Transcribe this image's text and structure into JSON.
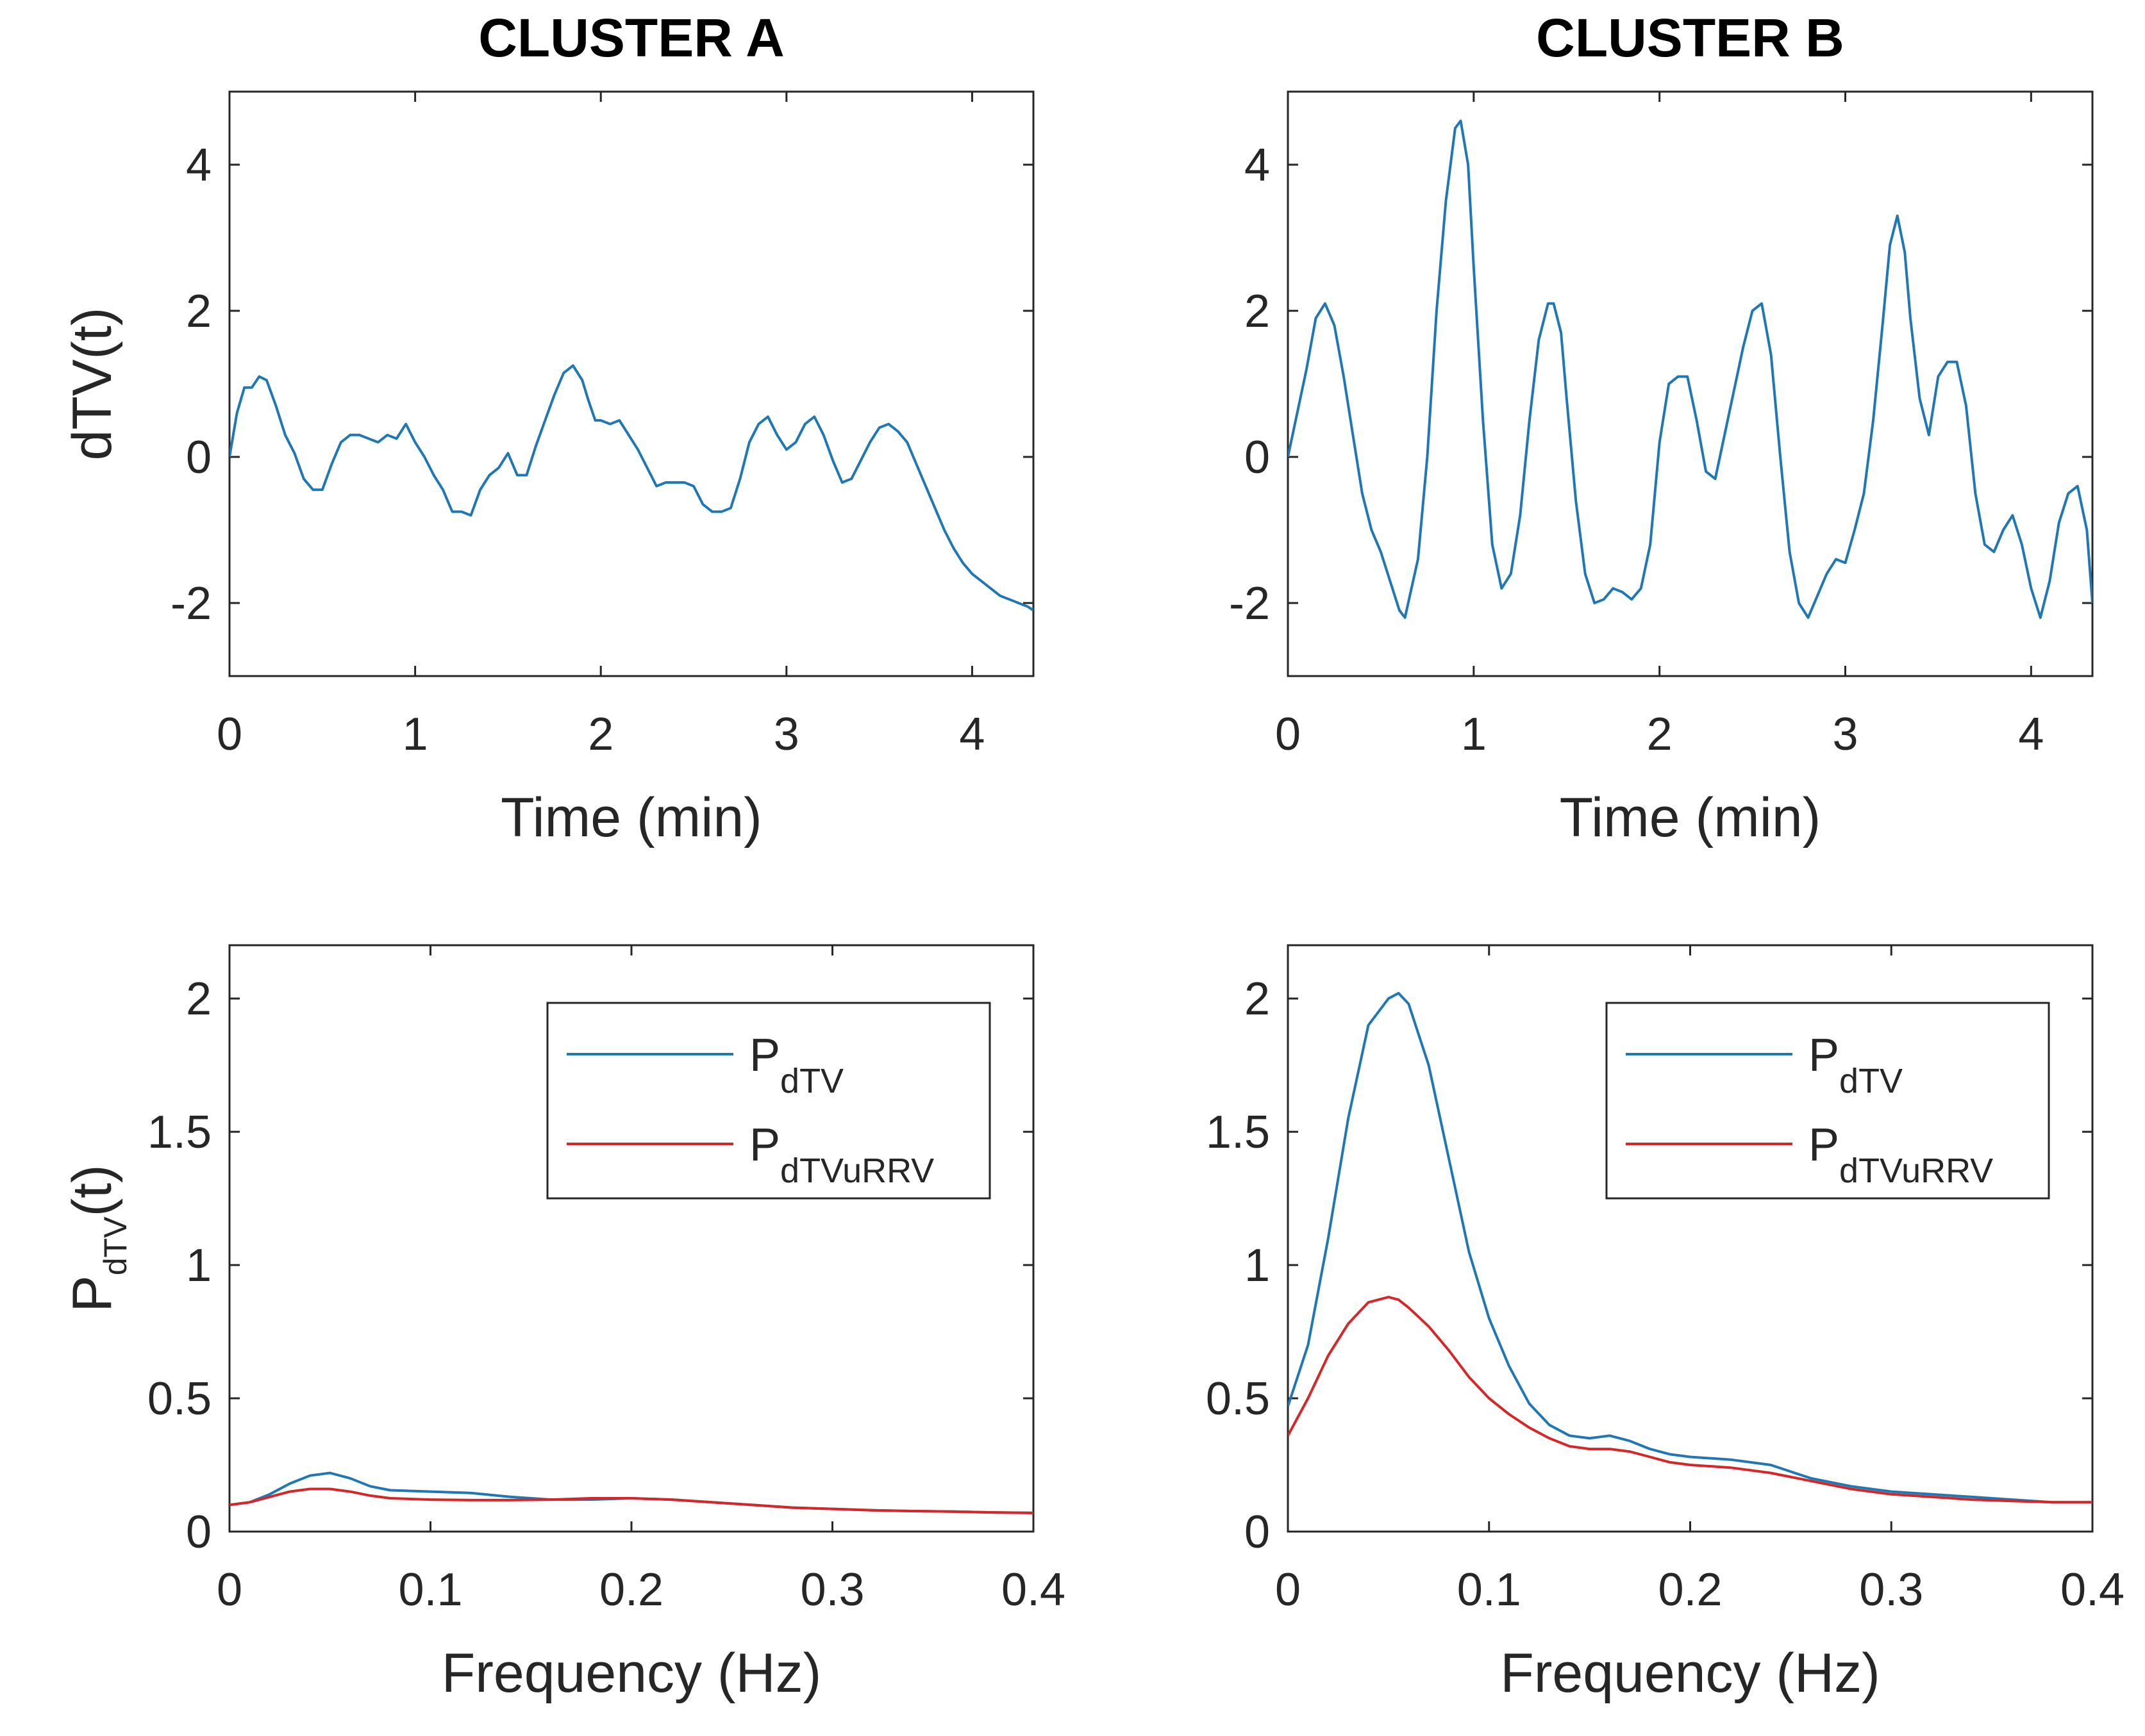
{
  "colors": {
    "blue": "#1f77b4",
    "red": "#d62728",
    "axis": "#262626"
  },
  "chart_data": [
    {
      "type": "line",
      "title": "CLUSTER A",
      "xlabel": "Time (min)",
      "ylabel": "dTV(t)",
      "xlim": [
        0,
        4.33
      ],
      "ylim": [
        -3,
        5
      ],
      "xticks": [
        0,
        1,
        2,
        3,
        4
      ],
      "xtick_labels": [
        "0",
        "1",
        "2",
        "3",
        "4"
      ],
      "yticks": [
        -2,
        0,
        2,
        4
      ],
      "ytick_labels": [
        "-2",
        "0",
        "2",
        "4"
      ],
      "grid": false,
      "legend": null,
      "series": [
        {
          "color": "#1f77b4",
          "x": [
            0,
            0.04,
            0.08,
            0.12,
            0.16,
            0.2,
            0.25,
            0.3,
            0.35,
            0.4,
            0.45,
            0.5,
            0.55,
            0.6,
            0.65,
            0.7,
            0.75,
            0.8,
            0.85,
            0.9,
            0.95,
            1.0,
            1.05,
            1.1,
            1.15,
            1.2,
            1.25,
            1.3,
            1.35,
            1.4,
            1.45,
            1.5,
            1.55,
            1.6,
            1.65,
            1.7,
            1.75,
            1.8,
            1.85,
            1.9,
            1.93,
            1.97,
            2.0,
            2.05,
            2.1,
            2.15,
            2.2,
            2.25,
            2.3,
            2.35,
            2.4,
            2.45,
            2.5,
            2.55,
            2.6,
            2.65,
            2.7,
            2.75,
            2.8,
            2.85,
            2.9,
            2.95,
            3.0,
            3.05,
            3.1,
            3.15,
            3.2,
            3.25,
            3.3,
            3.35,
            3.4,
            3.45,
            3.5,
            3.55,
            3.6,
            3.65,
            3.7,
            3.75,
            3.8,
            3.85,
            3.9,
            3.95,
            4.0,
            4.05,
            4.1,
            4.15,
            4.2,
            4.25,
            4.3,
            4.33
          ],
          "y": [
            0.0,
            0.6,
            0.95,
            0.95,
            1.1,
            1.05,
            0.7,
            0.3,
            0.05,
            -0.3,
            -0.45,
            -0.45,
            -0.1,
            0.2,
            0.3,
            0.3,
            0.25,
            0.2,
            0.3,
            0.25,
            0.45,
            0.2,
            0.0,
            -0.25,
            -0.45,
            -0.75,
            -0.75,
            -0.8,
            -0.45,
            -0.25,
            -0.15,
            0.05,
            -0.25,
            -0.25,
            0.15,
            0.5,
            0.85,
            1.15,
            1.25,
            1.05,
            0.8,
            0.5,
            0.5,
            0.45,
            0.5,
            0.3,
            0.1,
            -0.15,
            -0.4,
            -0.35,
            -0.35,
            -0.35,
            -0.4,
            -0.65,
            -0.75,
            -0.75,
            -0.7,
            -0.3,
            0.2,
            0.45,
            0.55,
            0.3,
            0.1,
            0.2,
            0.45,
            0.55,
            0.3,
            -0.05,
            -0.35,
            -0.3,
            -0.05,
            0.2,
            0.4,
            0.45,
            0.35,
            0.2,
            -0.1,
            -0.4,
            -0.7,
            -1.0,
            -1.25,
            -1.45,
            -1.6,
            -1.7,
            -1.8,
            -1.9,
            -1.95,
            -2.0,
            -2.05,
            -2.1
          ]
        }
      ]
    },
    {
      "type": "line",
      "title": "CLUSTER B",
      "xlabel": "Time (min)",
      "ylabel": "",
      "xlim": [
        0,
        4.33
      ],
      "ylim": [
        -3,
        5
      ],
      "xticks": [
        0,
        1,
        2,
        3,
        4
      ],
      "xtick_labels": [
        "0",
        "1",
        "2",
        "3",
        "4"
      ],
      "yticks": [
        -2,
        0,
        2,
        4
      ],
      "ytick_labels": [
        "-2",
        "0",
        "2",
        "4"
      ],
      "grid": false,
      "legend": null,
      "series": [
        {
          "color": "#1f77b4",
          "x": [
            0,
            0.05,
            0.1,
            0.15,
            0.2,
            0.25,
            0.3,
            0.35,
            0.4,
            0.45,
            0.5,
            0.55,
            0.6,
            0.63,
            0.7,
            0.75,
            0.8,
            0.85,
            0.9,
            0.93,
            0.97,
            1.0,
            1.05,
            1.1,
            1.15,
            1.2,
            1.25,
            1.3,
            1.35,
            1.4,
            1.43,
            1.47,
            1.5,
            1.55,
            1.6,
            1.65,
            1.7,
            1.75,
            1.8,
            1.85,
            1.9,
            1.95,
            2.0,
            2.05,
            2.1,
            2.15,
            2.2,
            2.25,
            2.3,
            2.35,
            2.4,
            2.45,
            2.5,
            2.55,
            2.6,
            2.65,
            2.7,
            2.75,
            2.8,
            2.85,
            2.9,
            2.95,
            3.0,
            3.05,
            3.1,
            3.15,
            3.2,
            3.24,
            3.28,
            3.32,
            3.35,
            3.4,
            3.45,
            3.5,
            3.55,
            3.6,
            3.65,
            3.7,
            3.75,
            3.8,
            3.85,
            3.9,
            3.95,
            4.0,
            4.05,
            4.1,
            4.15,
            4.2,
            4.25,
            4.3,
            4.33
          ],
          "y": [
            0.0,
            0.6,
            1.2,
            1.9,
            2.1,
            1.8,
            1.1,
            0.3,
            -0.5,
            -1.0,
            -1.3,
            -1.7,
            -2.1,
            -2.2,
            -1.4,
            0.0,
            2.0,
            3.5,
            4.5,
            4.6,
            4.0,
            2.6,
            0.5,
            -1.2,
            -1.8,
            -1.6,
            -0.8,
            0.5,
            1.6,
            2.1,
            2.1,
            1.7,
            0.8,
            -0.6,
            -1.6,
            -2.0,
            -1.95,
            -1.8,
            -1.85,
            -1.95,
            -1.8,
            -1.2,
            0.2,
            1.0,
            1.1,
            1.1,
            0.5,
            -0.2,
            -0.3,
            0.3,
            0.9,
            1.5,
            2.0,
            2.1,
            1.4,
            0.0,
            -1.3,
            -2.0,
            -2.2,
            -1.9,
            -1.6,
            -1.4,
            -1.45,
            -1.0,
            -0.5,
            0.5,
            1.8,
            2.9,
            3.3,
            2.8,
            1.9,
            0.8,
            0.3,
            1.1,
            1.3,
            1.3,
            0.7,
            -0.5,
            -1.2,
            -1.3,
            -1.0,
            -0.8,
            -1.2,
            -1.8,
            -2.2,
            -1.7,
            -0.9,
            -0.5,
            -0.4,
            -1.0,
            -2.0
          ]
        }
      ]
    },
    {
      "type": "line",
      "title": "",
      "xlabel": "Frequency (Hz)",
      "ylabel": "P",
      "ylabel_subscript": "dTV",
      "ylabel_suffix": "(t)",
      "xlim": [
        0,
        0.4
      ],
      "ylim": [
        0,
        2.2
      ],
      "xticks": [
        0,
        0.1,
        0.2,
        0.3,
        0.4
      ],
      "xtick_labels": [
        "0",
        "0.1",
        "0.2",
        "0.3",
        "0.4"
      ],
      "yticks": [
        0,
        0.5,
        1,
        1.5,
        2
      ],
      "ytick_labels": [
        "0",
        "0.5",
        "1",
        "1.5",
        "2"
      ],
      "grid": false,
      "legend": "top-right",
      "series": [
        {
          "name": "P",
          "name_subscript": "dTV",
          "color": "#1f77b4",
          "x": [
            0,
            0.01,
            0.02,
            0.03,
            0.04,
            0.05,
            0.06,
            0.07,
            0.08,
            0.1,
            0.12,
            0.14,
            0.16,
            0.18,
            0.2,
            0.22,
            0.24,
            0.26,
            0.28,
            0.3,
            0.32,
            0.34,
            0.36,
            0.38,
            0.4
          ],
          "y": [
            0.1,
            0.11,
            0.14,
            0.18,
            0.21,
            0.22,
            0.2,
            0.17,
            0.155,
            0.15,
            0.145,
            0.13,
            0.12,
            0.12,
            0.125,
            0.12,
            0.11,
            0.1,
            0.09,
            0.085,
            0.08,
            0.077,
            0.075,
            0.072,
            0.07
          ]
        },
        {
          "name": "P",
          "name_subscript": "dTVuRRV",
          "color": "#d62728",
          "x": [
            0,
            0.01,
            0.02,
            0.03,
            0.04,
            0.05,
            0.06,
            0.07,
            0.08,
            0.1,
            0.12,
            0.14,
            0.16,
            0.18,
            0.2,
            0.22,
            0.24,
            0.26,
            0.28,
            0.3,
            0.32,
            0.34,
            0.36,
            0.38,
            0.4
          ],
          "y": [
            0.1,
            0.11,
            0.13,
            0.15,
            0.16,
            0.16,
            0.15,
            0.135,
            0.125,
            0.12,
            0.118,
            0.118,
            0.12,
            0.125,
            0.125,
            0.12,
            0.11,
            0.1,
            0.09,
            0.085,
            0.08,
            0.077,
            0.075,
            0.072,
            0.07
          ]
        }
      ]
    },
    {
      "type": "line",
      "title": "",
      "xlabel": "Frequency (Hz)",
      "ylabel": "",
      "xlim": [
        0,
        0.4
      ],
      "ylim": [
        0,
        2.2
      ],
      "xticks": [
        0,
        0.1,
        0.2,
        0.3,
        0.4
      ],
      "xtick_labels": [
        "0",
        "0.1",
        "0.2",
        "0.3",
        "0.4"
      ],
      "yticks": [
        0,
        0.5,
        1,
        1.5,
        2
      ],
      "ytick_labels": [
        "0",
        "0.5",
        "1",
        "1.5",
        "2"
      ],
      "grid": false,
      "legend": "top-right",
      "series": [
        {
          "name": "P",
          "name_subscript": "dTV",
          "color": "#1f77b4",
          "x": [
            0,
            0.01,
            0.02,
            0.03,
            0.04,
            0.05,
            0.055,
            0.06,
            0.07,
            0.08,
            0.09,
            0.1,
            0.11,
            0.12,
            0.13,
            0.14,
            0.15,
            0.16,
            0.17,
            0.18,
            0.19,
            0.2,
            0.22,
            0.24,
            0.26,
            0.28,
            0.3,
            0.32,
            0.34,
            0.36,
            0.38,
            0.4
          ],
          "y": [
            0.47,
            0.7,
            1.1,
            1.55,
            1.9,
            2.0,
            2.02,
            1.98,
            1.75,
            1.4,
            1.05,
            0.8,
            0.62,
            0.48,
            0.4,
            0.36,
            0.35,
            0.36,
            0.34,
            0.31,
            0.29,
            0.28,
            0.27,
            0.25,
            0.2,
            0.17,
            0.15,
            0.14,
            0.13,
            0.12,
            0.11,
            0.11
          ]
        },
        {
          "name": "P",
          "name_subscript": "dTVuRRV",
          "color": "#d62728",
          "x": [
            0,
            0.01,
            0.02,
            0.03,
            0.04,
            0.05,
            0.055,
            0.06,
            0.07,
            0.08,
            0.09,
            0.1,
            0.11,
            0.12,
            0.13,
            0.14,
            0.15,
            0.16,
            0.17,
            0.18,
            0.19,
            0.2,
            0.22,
            0.24,
            0.26,
            0.28,
            0.3,
            0.32,
            0.34,
            0.36,
            0.38,
            0.4
          ],
          "y": [
            0.36,
            0.5,
            0.66,
            0.78,
            0.86,
            0.88,
            0.87,
            0.84,
            0.77,
            0.68,
            0.58,
            0.5,
            0.44,
            0.39,
            0.35,
            0.32,
            0.31,
            0.31,
            0.3,
            0.28,
            0.26,
            0.25,
            0.24,
            0.22,
            0.19,
            0.16,
            0.14,
            0.13,
            0.12,
            0.115,
            0.11,
            0.11
          ]
        }
      ]
    }
  ]
}
